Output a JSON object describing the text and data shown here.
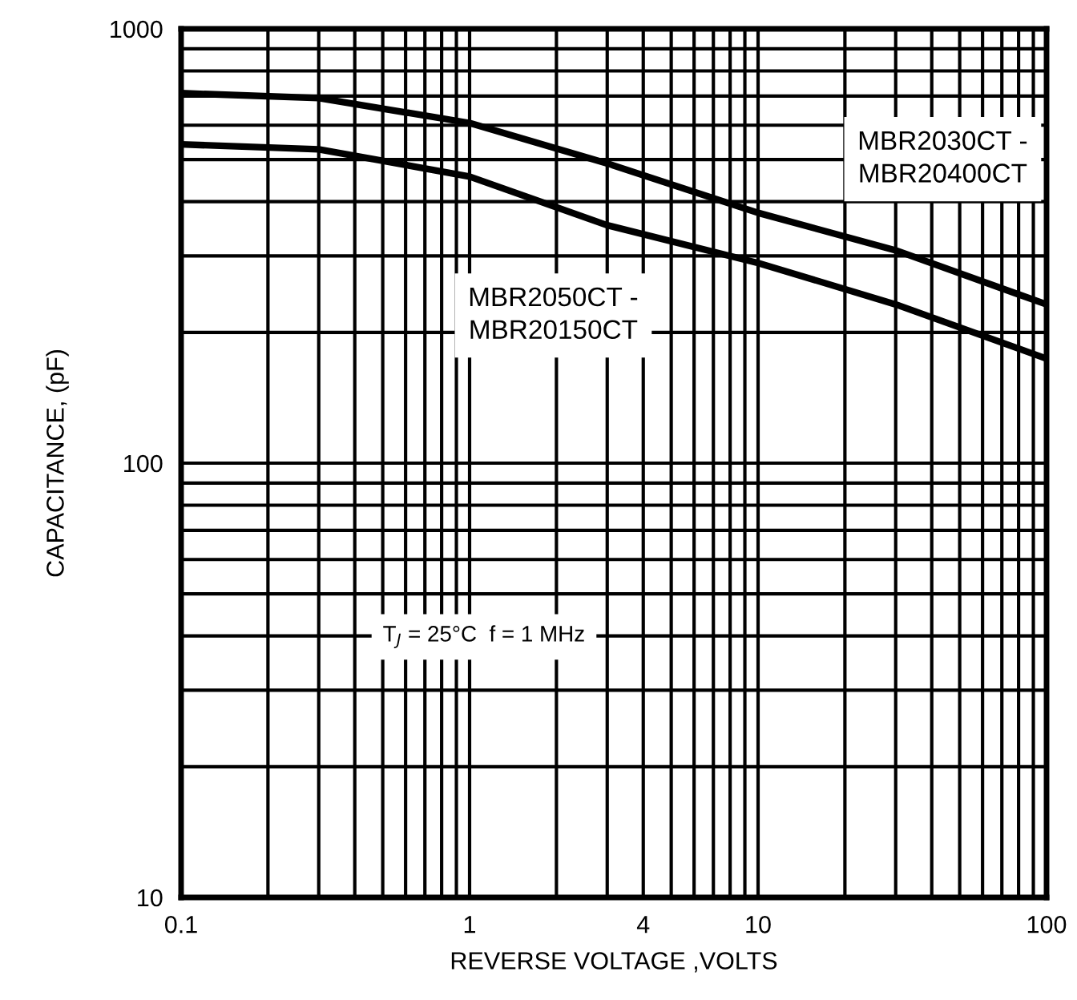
{
  "chart_data": {
    "type": "line",
    "xlabel": "REVERSE VOLTAGE ,VOLTS",
    "ylabel": "CAPACITANCE, (pF)",
    "log": "xy",
    "xlim": [
      0.1,
      100
    ],
    "ylim": [
      10,
      1000
    ],
    "xticks": [
      0.1,
      {
        "value": 0.2,
        "label": null
      },
      {
        "value": 0.3,
        "label": null
      },
      {
        "value": 0.4,
        "label": null
      },
      {
        "value": 0.5,
        "label": null
      },
      {
        "value": 0.6,
        "label": null
      },
      {
        "value": 0.7,
        "label": null
      },
      {
        "value": 0.8,
        "label": null
      },
      {
        "value": 0.9,
        "label": null
      },
      1,
      {
        "value": 2,
        "label": null
      },
      {
        "value": 3,
        "label": null
      },
      4,
      {
        "value": 5,
        "label": null
      },
      {
        "value": 6,
        "label": null
      },
      {
        "value": 7,
        "label": null
      },
      {
        "value": 8,
        "label": null
      },
      {
        "value": 9,
        "label": null
      },
      10,
      {
        "value": 20,
        "label": null
      },
      {
        "value": 30,
        "label": null
      },
      {
        "value": 40,
        "label": null
      },
      {
        "value": 50,
        "label": null
      },
      {
        "value": 60,
        "label": null
      },
      {
        "value": 70,
        "label": null
      },
      {
        "value": 80,
        "label": null
      },
      {
        "value": 90,
        "label": null
      },
      100
    ],
    "yticks": [
      10,
      {
        "value": 20,
        "label": null
      },
      {
        "value": 30,
        "label": null
      },
      {
        "value": 40,
        "label": null
      },
      {
        "value": 50,
        "label": null
      },
      {
        "value": 60,
        "label": null
      },
      {
        "value": 70,
        "label": null
      },
      {
        "value": 80,
        "label": null
      },
      {
        "value": 90,
        "label": null
      },
      100,
      {
        "value": 200,
        "label": null
      },
      {
        "value": 300,
        "label": null
      },
      {
        "value": 400,
        "label": null
      },
      {
        "value": 500,
        "label": null
      },
      {
        "value": 600,
        "label": null
      },
      {
        "value": 700,
        "label": null
      },
      {
        "value": 800,
        "label": null
      },
      {
        "value": 900,
        "label": null
      },
      1000
    ],
    "grid": true,
    "marker": "none",
    "line_style": "solid",
    "legend": false,
    "x": [
      0.1,
      0.3,
      1,
      3,
      10,
      30,
      100
    ],
    "series": [
      {
        "name": "MBR2030CT - MBR20400CT",
        "color": "#000000",
        "values": [
          711,
          693,
          607,
          490,
          377,
          309,
          232
        ]
      },
      {
        "name": "MBR2050CT - MBR20150CT",
        "color": "#000000",
        "values": [
          542,
          528,
          457,
          353,
          289,
          232,
          174
        ]
      }
    ],
    "annotations": [
      "T$_{J}$ = 25°C  f = 1 MHz"
    ]
  }
}
